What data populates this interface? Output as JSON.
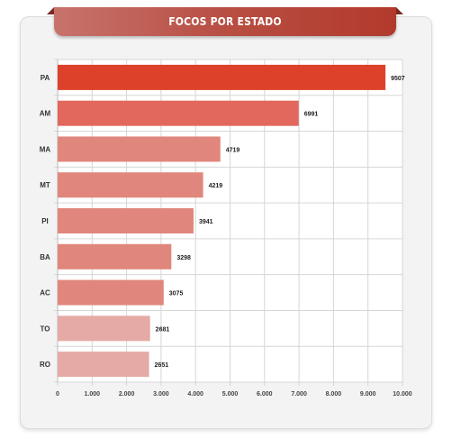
{
  "chart_data": {
    "type": "bar",
    "orientation": "horizontal",
    "title": "FOCOS POR ESTADO",
    "categories": [
      "PA",
      "AM",
      "MA",
      "MT",
      "PI",
      "BA",
      "AC",
      "TO",
      "RO"
    ],
    "values": [
      9507,
      6991,
      4719,
      4219,
      3941,
      3298,
      3075,
      2681,
      2651
    ],
    "value_labels": [
      "9507",
      "6991",
      "4719",
      "4219",
      "3941",
      "3298",
      "3075",
      "2681",
      "2651"
    ],
    "bar_colors": [
      "#de4129",
      "#e2685d",
      "#e0867c",
      "#e0867c",
      "#e0867c",
      "#e0867c",
      "#e0867c",
      "#e5aaa5",
      "#e5aaa5"
    ],
    "xlim": [
      0,
      10000
    ],
    "xticks": [
      0,
      1000,
      2000,
      3000,
      4000,
      5000,
      6000,
      7000,
      8000,
      9000,
      10000
    ],
    "xtick_labels": [
      "0",
      "1.000",
      "2.000",
      "3.000",
      "4.000",
      "5.000",
      "6.000",
      "7.000",
      "8.000",
      "9.000",
      "10.000"
    ],
    "grid": true
  }
}
